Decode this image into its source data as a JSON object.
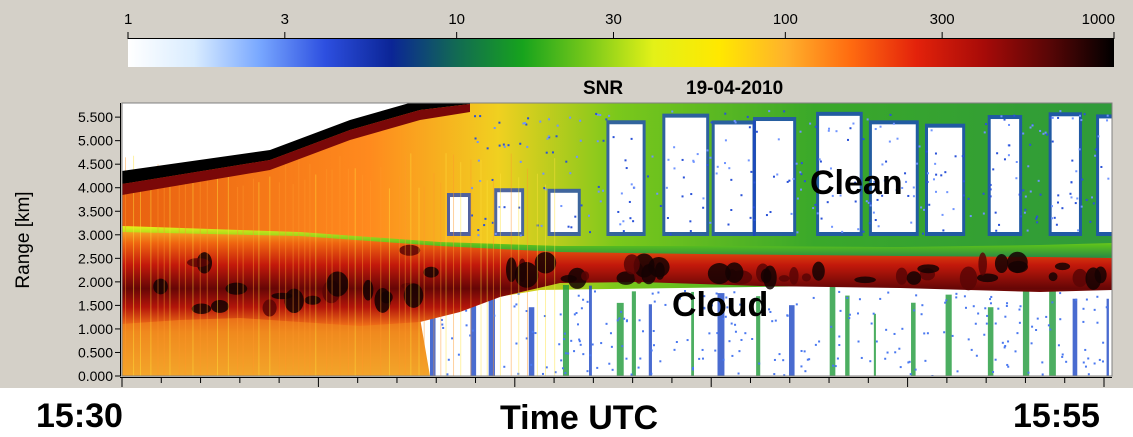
{
  "colorbar": {
    "tick_labels": [
      "1",
      "3",
      "10",
      "30",
      "100",
      "300",
      "1000"
    ],
    "tick_values": [
      1,
      3,
      10,
      30,
      100,
      300,
      1000
    ],
    "scale": "log",
    "range": [
      1,
      1000
    ],
    "quantity": "SNR",
    "date": "19-04-2010",
    "colormap_stops": [
      "#ffffff",
      "#d9ecff",
      "#79a8ff",
      "#2d4fe0",
      "#0b2596",
      "#126a53",
      "#17a31d",
      "#79c91a",
      "#e3f118",
      "#ffe800",
      "#ffb22b",
      "#ff6b10",
      "#e3220b",
      "#a80b08",
      "#5a0606",
      "#000000"
    ]
  },
  "chart_data": {
    "type": "heatmap",
    "title": "SNR 19-04-2010",
    "ylabel": "Range [km]",
    "xlabel": "Time UTC",
    "y_tick_labels": [
      "0.000",
      "0.500",
      "1.000",
      "1.500",
      "2.000",
      "2.500",
      "3.000",
      "3.500",
      "4.000",
      "4.500",
      "5.000",
      "5.500"
    ],
    "ylim": [
      0,
      5.8
    ],
    "x_start_label": "15:30",
    "x_end_label": "15:55",
    "value_range": [
      1,
      1000
    ],
    "value_scale": "log",
    "annotations": [
      "Clean",
      "Cloud"
    ],
    "cloud_base_km": [
      [
        0.0,
        1.5
      ],
      [
        0.15,
        1.5
      ],
      [
        0.28,
        1.0
      ],
      [
        0.34,
        1.2
      ],
      [
        0.4,
        1.6
      ],
      [
        0.45,
        1.85
      ],
      [
        0.5,
        2.0
      ],
      [
        0.6,
        1.95
      ],
      [
        0.7,
        1.9
      ],
      [
        0.8,
        1.95
      ],
      [
        0.9,
        1.85
      ],
      [
        1.0,
        1.8
      ]
    ],
    "cloud_top_km": [
      [
        0.0,
        3.0
      ],
      [
        0.1,
        2.95
      ],
      [
        0.2,
        2.8
      ],
      [
        0.3,
        2.65
      ],
      [
        0.4,
        2.55
      ],
      [
        0.5,
        2.55
      ],
      [
        0.6,
        2.5
      ],
      [
        0.7,
        2.5
      ],
      [
        0.8,
        2.45
      ],
      [
        0.9,
        2.6
      ],
      [
        1.0,
        2.65
      ]
    ],
    "noise_limit_km": [
      [
        0.0,
        4.15
      ],
      [
        0.15,
        4.5
      ],
      [
        0.22,
        5.0
      ],
      [
        0.3,
        5.8
      ]
    ]
  },
  "labels": {
    "time_start": "15:30",
    "time_axis": "Time UTC",
    "time_end": "15:55",
    "range_axis": "Range [km]"
  }
}
